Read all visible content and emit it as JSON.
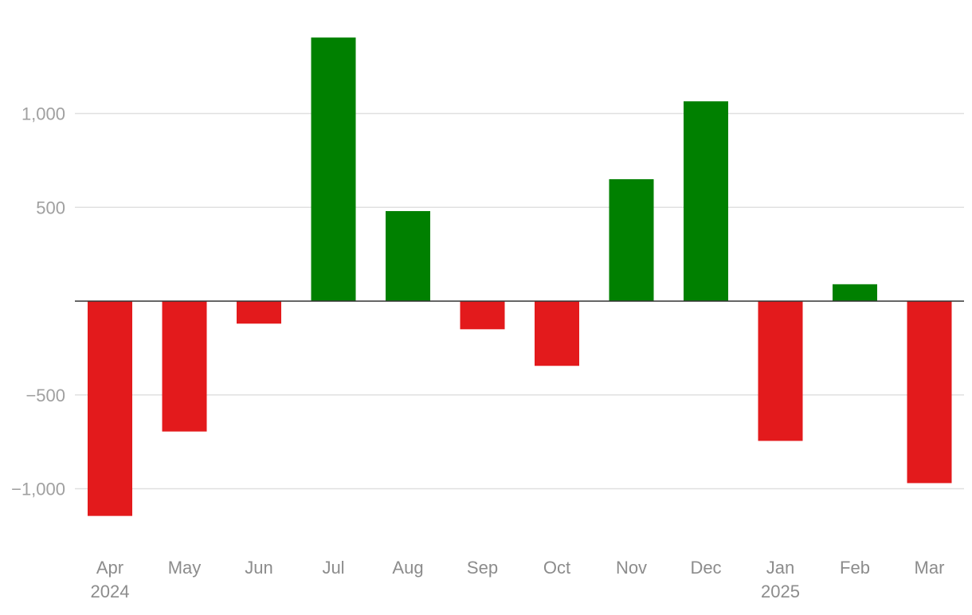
{
  "chart_data": {
    "type": "bar",
    "title": "",
    "xlabel": "",
    "ylabel": "",
    "categories": [
      "Apr",
      "May",
      "Jun",
      "Jul",
      "Aug",
      "Sep",
      "Oct",
      "Nov",
      "Dec",
      "Jan",
      "Feb",
      "Mar"
    ],
    "category_sublabels": [
      "2024",
      "",
      "",
      "",
      "",
      "",
      "",
      "",
      "",
      "2025",
      "",
      ""
    ],
    "values": [
      -1145,
      -695,
      -120,
      1405,
      480,
      -150,
      -345,
      650,
      1065,
      -745,
      90,
      -970
    ],
    "ylim": [
      -1300,
      1550
    ],
    "yticks": [
      -1000,
      -500,
      500,
      1000
    ],
    "ytick_labels": [
      "−1,000",
      "−500",
      "500",
      "1,000"
    ],
    "grid": true,
    "legend": "none",
    "colors": {
      "positive": "#008000",
      "negative": "#e31a1c",
      "grid": "#e0e0e0",
      "zero_line": "#333333"
    }
  }
}
